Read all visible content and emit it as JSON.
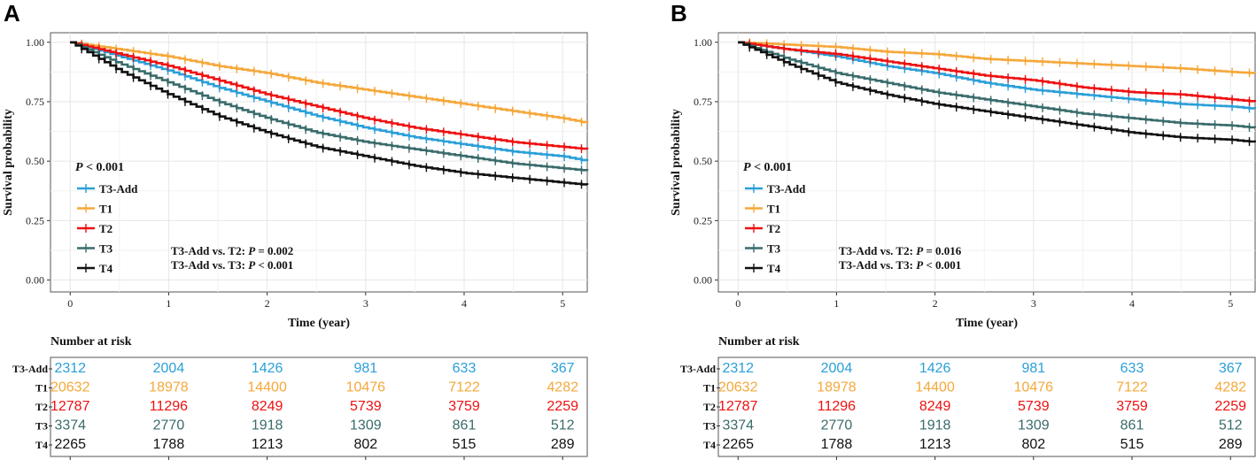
{
  "colors": {
    "T3-Add": "#2a9fd8",
    "T1": "#f5a83a",
    "T2": "#ee1111",
    "T3": "#3a6b6b",
    "T4": "#111111",
    "grid": "#e6e6e6",
    "frame": "#555555"
  },
  "chart_data": [
    {
      "type": "line",
      "panel_label": "A",
      "title": "",
      "xlabel": "Time (year)",
      "ylabel": "Survival probability",
      "xlim": [
        -0.2,
        5.25
      ],
      "ylim": [
        -0.05,
        1.04
      ],
      "xticks": [
        "0",
        "1",
        "2",
        "3",
        "4",
        "5"
      ],
      "yticks": [
        "0.00",
        "0.25",
        "0.50",
        "0.75",
        "1.00"
      ],
      "pvalue_label": "P < 0.001",
      "annotations": [
        "T3-Add vs. T2: P = 0.002",
        "T3-Add vs. T3: P < 0.001"
      ],
      "series": [
        {
          "name": "T3-Add",
          "x": [
            0,
            0.5,
            1,
            1.5,
            2,
            2.5,
            3,
            3.5,
            4,
            4.5,
            5,
            5.25
          ],
          "y": [
            1.0,
            0.94,
            0.88,
            0.81,
            0.75,
            0.69,
            0.64,
            0.6,
            0.57,
            0.54,
            0.52,
            0.5
          ]
        },
        {
          "name": "T1",
          "x": [
            0,
            0.5,
            1,
            1.5,
            2,
            2.5,
            3,
            3.5,
            4,
            4.5,
            5,
            5.25
          ],
          "y": [
            1.0,
            0.97,
            0.94,
            0.9,
            0.87,
            0.83,
            0.8,
            0.77,
            0.74,
            0.71,
            0.68,
            0.66
          ]
        },
        {
          "name": "T2",
          "x": [
            0,
            0.5,
            1,
            1.5,
            2,
            2.5,
            3,
            3.5,
            4,
            4.5,
            5,
            5.25
          ],
          "y": [
            1.0,
            0.95,
            0.9,
            0.84,
            0.78,
            0.73,
            0.68,
            0.64,
            0.61,
            0.58,
            0.56,
            0.55
          ]
        },
        {
          "name": "T3",
          "x": [
            0,
            0.5,
            1,
            1.5,
            2,
            2.5,
            3,
            3.5,
            4,
            4.5,
            5,
            5.25
          ],
          "y": [
            1.0,
            0.91,
            0.83,
            0.75,
            0.68,
            0.62,
            0.58,
            0.55,
            0.52,
            0.49,
            0.47,
            0.46
          ]
        },
        {
          "name": "T4",
          "x": [
            0,
            0.5,
            1,
            1.5,
            2,
            2.5,
            3,
            3.5,
            4,
            4.5,
            5,
            5.25
          ],
          "y": [
            1.0,
            0.88,
            0.78,
            0.69,
            0.62,
            0.56,
            0.52,
            0.48,
            0.45,
            0.43,
            0.41,
            0.4
          ]
        }
      ],
      "risk_table": {
        "title": "Number at risk",
        "rows": [
          {
            "name": "T3-Add",
            "values": [
              "2312",
              "2004",
              "1426",
              "981",
              "633",
              "367"
            ]
          },
          {
            "name": "T1",
            "values": [
              "20632",
              "18978",
              "14400",
              "10476",
              "7122",
              "4282"
            ]
          },
          {
            "name": "T2",
            "values": [
              "12787",
              "11296",
              "8249",
              "5739",
              "3759",
              "2259"
            ]
          },
          {
            "name": "T3",
            "values": [
              "3374",
              "2770",
              "1918",
              "1309",
              "861",
              "512"
            ]
          },
          {
            "name": "T4",
            "values": [
              "2265",
              "1788",
              "1213",
              "802",
              "515",
              "289"
            ]
          }
        ]
      }
    },
    {
      "type": "line",
      "panel_label": "B",
      "title": "",
      "xlabel": "Time (year)",
      "ylabel": "Survival probability",
      "xlim": [
        -0.2,
        5.25
      ],
      "ylim": [
        -0.05,
        1.04
      ],
      "xticks": [
        "0",
        "1",
        "2",
        "3",
        "4",
        "5"
      ],
      "yticks": [
        "0.00",
        "0.25",
        "0.50",
        "0.75",
        "1.00"
      ],
      "pvalue_label": "P < 0.001",
      "annotations": [
        "T3-Add vs. T2: P = 0.016",
        "T3-Add vs. T3: P < 0.001"
      ],
      "series": [
        {
          "name": "T3-Add",
          "x": [
            0,
            0.5,
            1,
            1.5,
            2,
            2.5,
            3,
            3.5,
            4,
            4.5,
            5,
            5.25
          ],
          "y": [
            1.0,
            0.97,
            0.94,
            0.9,
            0.87,
            0.83,
            0.8,
            0.78,
            0.76,
            0.74,
            0.73,
            0.72
          ]
        },
        {
          "name": "T1",
          "x": [
            0,
            0.5,
            1,
            1.5,
            2,
            2.5,
            3,
            3.5,
            4,
            4.5,
            5,
            5.25
          ],
          "y": [
            1.0,
            0.99,
            0.98,
            0.96,
            0.95,
            0.93,
            0.92,
            0.91,
            0.9,
            0.89,
            0.875,
            0.87
          ]
        },
        {
          "name": "T2",
          "x": [
            0,
            0.5,
            1,
            1.5,
            2,
            2.5,
            3,
            3.5,
            4,
            4.5,
            5,
            5.25
          ],
          "y": [
            1.0,
            0.97,
            0.95,
            0.92,
            0.89,
            0.86,
            0.84,
            0.81,
            0.79,
            0.78,
            0.76,
            0.75
          ]
        },
        {
          "name": "T3",
          "x": [
            0,
            0.5,
            1,
            1.5,
            2,
            2.5,
            3,
            3.5,
            4,
            4.5,
            5,
            5.25
          ],
          "y": [
            1.0,
            0.93,
            0.87,
            0.83,
            0.79,
            0.76,
            0.73,
            0.7,
            0.68,
            0.66,
            0.65,
            0.64
          ]
        },
        {
          "name": "T4",
          "x": [
            0,
            0.5,
            1,
            1.5,
            2,
            2.5,
            3,
            3.5,
            4,
            4.5,
            5,
            5.25
          ],
          "y": [
            1.0,
            0.91,
            0.83,
            0.78,
            0.74,
            0.71,
            0.68,
            0.65,
            0.62,
            0.6,
            0.59,
            0.58
          ]
        }
      ],
      "risk_table": {
        "title": "Number at risk",
        "rows": [
          {
            "name": "T3-Add",
            "values": [
              "2312",
              "2004",
              "1426",
              "981",
              "633",
              "367"
            ]
          },
          {
            "name": "T1",
            "values": [
              "20632",
              "18978",
              "14400",
              "10476",
              "7122",
              "4282"
            ]
          },
          {
            "name": "T2",
            "values": [
              "12787",
              "11296",
              "8249",
              "5739",
              "3759",
              "2259"
            ]
          },
          {
            "name": "T3",
            "values": [
              "3374",
              "2770",
              "1918",
              "1309",
              "861",
              "512"
            ]
          },
          {
            "name": "T4",
            "values": [
              "2265",
              "1788",
              "1213",
              "802",
              "515",
              "289"
            ]
          }
        ]
      }
    }
  ]
}
